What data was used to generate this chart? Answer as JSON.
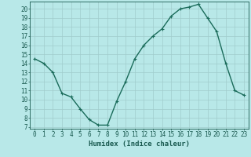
{
  "x": [
    0,
    1,
    2,
    3,
    4,
    5,
    6,
    7,
    8,
    9,
    10,
    11,
    12,
    13,
    14,
    15,
    16,
    17,
    18,
    19,
    20,
    21,
    22,
    23
  ],
  "y": [
    14.5,
    14.0,
    13.0,
    10.7,
    10.3,
    9.0,
    7.8,
    7.2,
    7.2,
    9.8,
    12.0,
    14.5,
    16.0,
    17.0,
    17.8,
    19.2,
    20.0,
    20.2,
    20.5,
    19.0,
    17.5,
    14.0,
    11.0,
    10.5
  ],
  "xlim": [
    -0.5,
    23.5
  ],
  "ylim": [
    6.8,
    20.8
  ],
  "yticks": [
    7,
    8,
    9,
    10,
    11,
    12,
    13,
    14,
    15,
    16,
    17,
    18,
    19,
    20
  ],
  "xticks": [
    0,
    1,
    2,
    3,
    4,
    5,
    6,
    7,
    8,
    9,
    10,
    11,
    12,
    13,
    14,
    15,
    16,
    17,
    18,
    19,
    20,
    21,
    22,
    23
  ],
  "xlabel": "Humidex (Indice chaleur)",
  "line_color": "#1a6b5a",
  "marker": "+",
  "bg_color": "#b8e8e8",
  "grid_color": "#a0cccc",
  "tick_label_color": "#1a5a50",
  "axis_color": "#1a5a50",
  "xlabel_fontsize": 6.5,
  "tick_fontsize": 5.5,
  "line_width": 1.0
}
